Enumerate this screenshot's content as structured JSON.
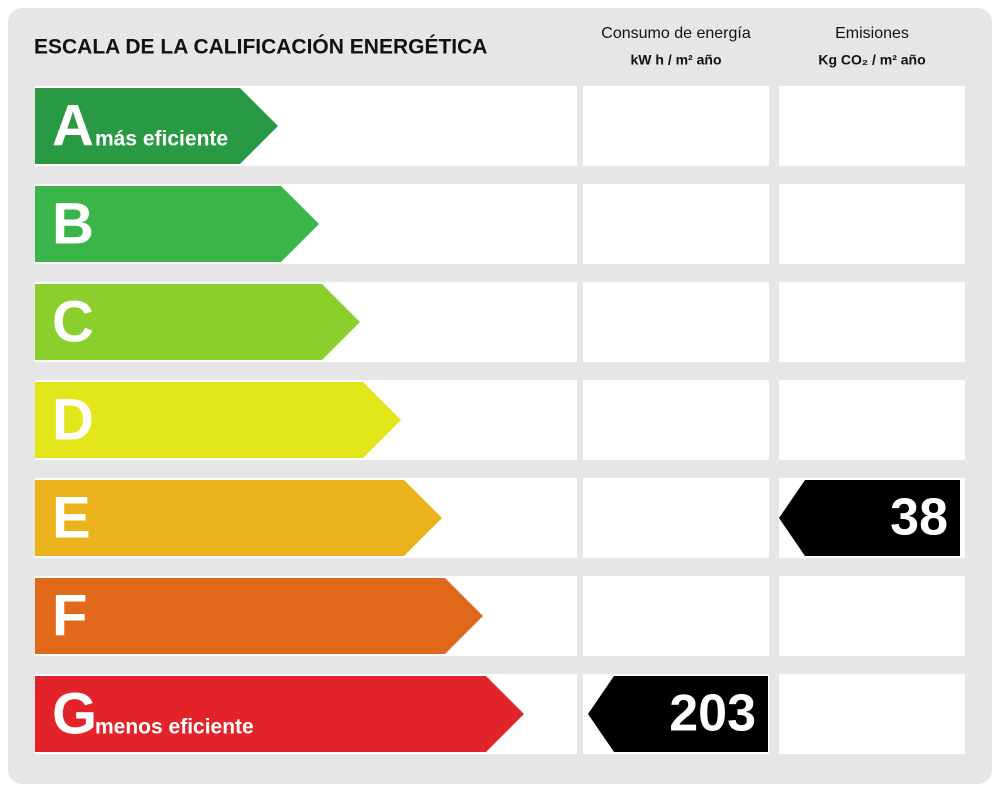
{
  "title": "ESCALA DE LA CALIFICACIÓN ENERGÉTICA",
  "columns": [
    {
      "title": "Consumo de energía",
      "unit": "kW h / m² año"
    },
    {
      "title": "Emisiones",
      "unit": "Kg CO₂ / m² año"
    }
  ],
  "rows": [
    {
      "letter": "A",
      "note": "más eficiente",
      "color": "#2a9944"
    },
    {
      "letter": "B",
      "color": "#3bb54a"
    },
    {
      "letter": "C",
      "color": "#8bcf2c"
    },
    {
      "letter": "D",
      "color": "#e2e61a"
    },
    {
      "letter": "E",
      "color": "#ebb31b",
      "emissions": 38
    },
    {
      "letter": "F",
      "color": "#e0691c"
    },
    {
      "letter": "G",
      "note": "menos eficiente",
      "color": "#e2232a",
      "consumption": 203
    }
  ]
}
